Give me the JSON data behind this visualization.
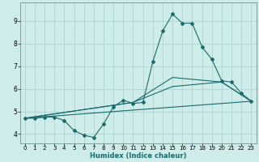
{
  "xlabel": "Humidex (Indice chaleur)",
  "background_color": "#ceecea",
  "grid_color": "#aacfcc",
  "line_color": "#1a6b6b",
  "xlim": [
    -0.5,
    23.5
  ],
  "ylim": [
    3.6,
    9.8
  ],
  "x_ticks": [
    0,
    1,
    2,
    3,
    4,
    5,
    6,
    7,
    8,
    9,
    10,
    11,
    12,
    13,
    14,
    15,
    16,
    17,
    18,
    19,
    20,
    21,
    22,
    23
  ],
  "y_ticks": [
    4,
    5,
    6,
    7,
    8,
    9
  ],
  "line1_x": [
    0,
    1,
    2,
    3,
    4,
    5,
    6,
    7,
    8,
    9,
    10,
    11,
    12,
    13,
    14,
    15,
    16,
    17,
    18,
    19,
    20,
    21,
    22,
    23
  ],
  "line1_y": [
    4.7,
    4.7,
    4.75,
    4.75,
    4.6,
    4.15,
    3.95,
    3.85,
    4.45,
    5.2,
    5.5,
    5.35,
    5.4,
    7.2,
    8.55,
    9.3,
    8.9,
    8.9,
    7.85,
    7.3,
    6.35,
    6.3,
    5.8,
    5.45
  ],
  "line2_x": [
    0,
    23
  ],
  "line2_y": [
    4.7,
    5.45
  ],
  "line3_x": [
    0,
    11,
    15,
    20,
    23
  ],
  "line3_y": [
    4.7,
    5.4,
    6.5,
    6.3,
    5.45
  ],
  "line4_x": [
    0,
    11,
    15,
    20,
    23
  ],
  "line4_y": [
    4.7,
    5.4,
    6.1,
    6.3,
    5.45
  ],
  "xlabel_fontsize": 6.0,
  "tick_fontsize_x": 5.0,
  "tick_fontsize_y": 5.5
}
